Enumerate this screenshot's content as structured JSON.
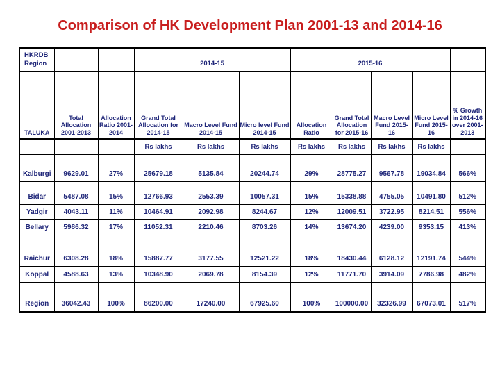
{
  "title": "Comparison of HK Development Plan 2001-13 and 2014-16",
  "colors": {
    "title_red": "#c81e1e",
    "table_text_navy": "#1e2578",
    "border_black": "#000000",
    "background": "#ffffff"
  },
  "table": {
    "corner_label": "HKRDB\nRegion",
    "span_headers": [
      {
        "label": "2014-15",
        "colspan": 3
      },
      {
        "label": "2015-16",
        "colspan": 4
      }
    ],
    "columns": [
      "TALUKA",
      "Total\nAllocation\n2001-2013",
      "Allocation\nRatio 2001-\n2014",
      "Grand Total\nAllocation for\n2014-15",
      "Macro Level Fund\n2014-15",
      "Micro level Fund\n2014-15",
      "Allocation\nRatio",
      "Grand Total\nAllocation\nfor 2015-16",
      "Macro Level\nFund 2015-16",
      "Micro Level\nFund 2015-\n16",
      "% Growth\nin 2014-16\nover 2001-\n2013"
    ],
    "unit_label": "Rs lakhs",
    "rows": [
      {
        "taluka": "Kalburgi",
        "values": [
          "9629.01",
          "27%",
          "25679.18",
          "5135.84",
          "20244.74",
          "29%",
          "28775.27",
          "9567.78",
          "19034.84",
          "566%"
        ]
      },
      {
        "taluka": "Bidar",
        "values": [
          "5487.08",
          "15%",
          "12766.93",
          "2553.39",
          "10057.31",
          "15%",
          "15338.88",
          "4755.05",
          "10491.80",
          "512%"
        ]
      },
      {
        "taluka": "Yadgir",
        "values": [
          "4043.11",
          "11%",
          "10464.91",
          "2092.98",
          "8244.67",
          "12%",
          "12009.51",
          "3722.95",
          "8214.51",
          "556%"
        ]
      },
      {
        "taluka": "Bellary",
        "values": [
          "5986.32",
          "17%",
          "11052.31",
          "2210.46",
          "8703.26",
          "14%",
          "13674.20",
          "4239.00",
          "9353.15",
          "413%"
        ]
      },
      {
        "taluka": "Raichur",
        "values": [
          "6308.28",
          "18%",
          "15887.77",
          "3177.55",
          "12521.22",
          "18%",
          "18430.44",
          "6128.12",
          "12191.74",
          "544%"
        ]
      },
      {
        "taluka": "Koppal",
        "values": [
          "4588.63",
          "13%",
          "10348.90",
          "2069.78",
          "8154.39",
          "12%",
          "11771.70",
          "3914.09",
          "7786.98",
          "482%"
        ]
      },
      {
        "taluka": "Region",
        "values": [
          "36042.43",
          "100%",
          "86200.00",
          "17240.00",
          "67925.60",
          "100%",
          "100000.00",
          "32326.99",
          "67073.01",
          "517%"
        ]
      }
    ]
  }
}
